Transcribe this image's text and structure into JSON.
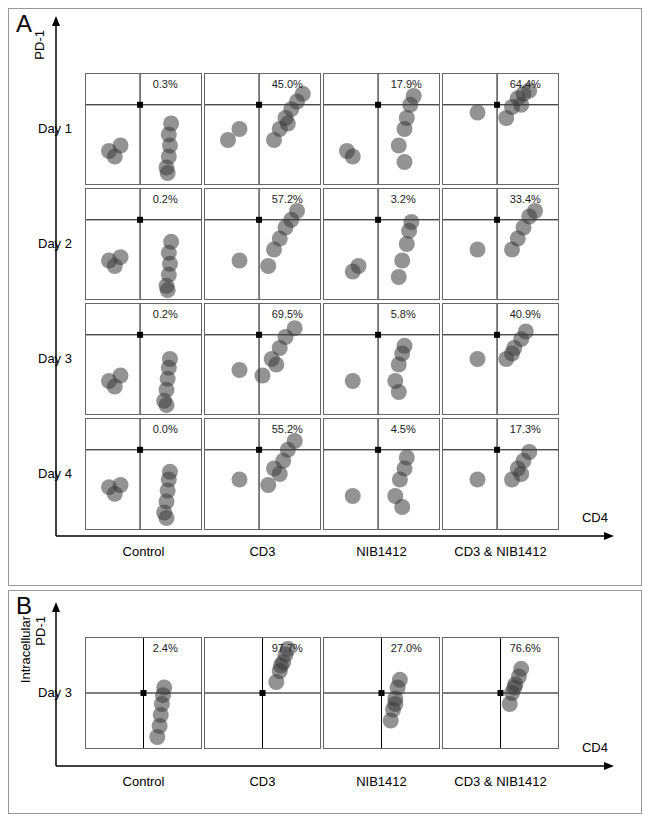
{
  "figure": {
    "panels": [
      {
        "label": "A",
        "y_axis": [
          "PD-1"
        ],
        "x_axis": "CD4",
        "rows": [
          "Day 1",
          "Day 2",
          "Day 3",
          "Day 4"
        ],
        "columns": [
          "Control",
          "CD3",
          "NIB1412",
          "CD3 & NIB1412"
        ]
      },
      {
        "label": "B",
        "y_axis": [
          "Intracellular",
          "PD-1"
        ],
        "x_axis": "CD4",
        "rows": [
          "Day 3"
        ],
        "columns": [
          "Control",
          "CD3",
          "NIB1412",
          "CD3 & NIB1412"
        ]
      }
    ]
  },
  "chart_data": [
    {
      "type": "scatter",
      "panel": "A",
      "row": "Day 1",
      "column": "Control",
      "annotations": [
        "0.3%"
      ],
      "xlim": [
        0,
        100
      ],
      "ylim": [
        0,
        100
      ],
      "tick_labels": false,
      "quadrant": {
        "x": 47,
        "y": 72
      },
      "x": [
        70,
        72,
        73,
        72,
        74,
        71,
        20,
        25,
        30
      ],
      "y": [
        15,
        25,
        35,
        45,
        55,
        10,
        30,
        25,
        35
      ]
    },
    {
      "type": "scatter",
      "panel": "A",
      "row": "Day 1",
      "column": "CD3",
      "annotations": [
        "45.0%"
      ],
      "xlim": [
        0,
        100
      ],
      "ylim": [
        0,
        100
      ],
      "tick_labels": false,
      "quadrant": {
        "x": 47,
        "y": 72
      },
      "x": [
        60,
        65,
        70,
        75,
        80,
        85,
        72,
        20,
        30
      ],
      "y": [
        40,
        50,
        60,
        68,
        75,
        82,
        55,
        40,
        50
      ]
    },
    {
      "type": "scatter",
      "panel": "A",
      "row": "Day 1",
      "column": "NIB1412",
      "annotations": [
        "17.9%"
      ],
      "xlim": [
        0,
        100
      ],
      "ylim": [
        0,
        100
      ],
      "tick_labels": false,
      "quadrant": {
        "x": 47,
        "y": 72
      },
      "x": [
        65,
        70,
        72,
        75,
        78,
        70,
        20,
        25
      ],
      "y": [
        35,
        50,
        60,
        72,
        80,
        20,
        30,
        25
      ]
    },
    {
      "type": "scatter",
      "panel": "A",
      "row": "Day 1",
      "column": "CD3 & NIB1412",
      "annotations": [
        "64.4%"
      ],
      "xlim": [
        0,
        100
      ],
      "ylim": [
        0,
        100
      ],
      "tick_labels": false,
      "quadrant": {
        "x": 47,
        "y": 72
      },
      "x": [
        60,
        65,
        70,
        75,
        68,
        55,
        30
      ],
      "y": [
        70,
        78,
        82,
        85,
        72,
        60,
        65
      ]
    },
    {
      "type": "scatter",
      "panel": "A",
      "row": "Day 2",
      "column": "Control",
      "annotations": [
        "0.2%"
      ],
      "xlim": [
        0,
        100
      ],
      "ylim": [
        0,
        100
      ],
      "tick_labels": false,
      "quadrant": {
        "x": 47,
        "y": 72
      },
      "x": [
        70,
        72,
        73,
        72,
        74,
        71,
        20,
        25,
        30
      ],
      "y": [
        12,
        22,
        32,
        42,
        52,
        8,
        35,
        30,
        38
      ]
    },
    {
      "type": "scatter",
      "panel": "A",
      "row": "Day 2",
      "column": "CD3",
      "annotations": [
        "57.2%"
      ],
      "xlim": [
        0,
        100
      ],
      "ylim": [
        0,
        100
      ],
      "tick_labels": false,
      "quadrant": {
        "x": 47,
        "y": 72
      },
      "x": [
        55,
        60,
        65,
        70,
        75,
        80,
        30
      ],
      "y": [
        30,
        45,
        55,
        65,
        72,
        80,
        35
      ]
    },
    {
      "type": "scatter",
      "panel": "A",
      "row": "Day 2",
      "column": "NIB1412",
      "annotations": [
        "3.2%"
      ],
      "xlim": [
        0,
        100
      ],
      "ylim": [
        0,
        100
      ],
      "tick_labels": false,
      "quadrant": {
        "x": 47,
        "y": 72
      },
      "x": [
        65,
        68,
        72,
        74,
        76,
        25,
        30
      ],
      "y": [
        20,
        35,
        50,
        62,
        70,
        25,
        30
      ]
    },
    {
      "type": "scatter",
      "panel": "A",
      "row": "Day 2",
      "column": "CD3 & NIB1412",
      "annotations": [
        "33.4%"
      ],
      "xlim": [
        0,
        100
      ],
      "ylim": [
        0,
        100
      ],
      "tick_labels": false,
      "quadrant": {
        "x": 47,
        "y": 72
      },
      "x": [
        60,
        65,
        70,
        75,
        80,
        30
      ],
      "y": [
        45,
        55,
        65,
        75,
        80,
        45
      ]
    },
    {
      "type": "scatter",
      "panel": "A",
      "row": "Day 3",
      "column": "Control",
      "annotations": [
        "0.2%"
      ],
      "xlim": [
        0,
        100
      ],
      "ylim": [
        0,
        100
      ],
      "tick_labels": false,
      "quadrant": {
        "x": 47,
        "y": 72
      },
      "x": [
        68,
        70,
        71,
        72,
        73,
        70,
        20,
        25,
        30
      ],
      "y": [
        12,
        22,
        32,
        42,
        50,
        8,
        30,
        25,
        35
      ]
    },
    {
      "type": "scatter",
      "panel": "A",
      "row": "Day 3",
      "column": "CD3",
      "annotations": [
        "69.5%"
      ],
      "xlim": [
        0,
        100
      ],
      "ylim": [
        0,
        100
      ],
      "tick_labels": false,
      "quadrant": {
        "x": 47,
        "y": 72
      },
      "x": [
        50,
        58,
        65,
        70,
        78,
        62,
        30
      ],
      "y": [
        35,
        50,
        60,
        70,
        78,
        45,
        40
      ]
    },
    {
      "type": "scatter",
      "panel": "A",
      "row": "Day 3",
      "column": "NIB1412",
      "annotations": [
        "5.8%"
      ],
      "xlim": [
        0,
        100
      ],
      "ylim": [
        0,
        100
      ],
      "tick_labels": false,
      "quadrant": {
        "x": 47,
        "y": 72
      },
      "x": [
        62,
        65,
        68,
        70,
        65,
        25
      ],
      "y": [
        30,
        45,
        55,
        62,
        20,
        30
      ]
    },
    {
      "type": "scatter",
      "panel": "A",
      "row": "Day 3",
      "column": "CD3 & NIB1412",
      "annotations": [
        "40.9%"
      ],
      "xlim": [
        0,
        100
      ],
      "ylim": [
        0,
        100
      ],
      "tick_labels": false,
      "quadrant": {
        "x": 47,
        "y": 72
      },
      "x": [
        55,
        62,
        68,
        72,
        60,
        30
      ],
      "y": [
        50,
        60,
        68,
        75,
        55,
        50
      ]
    },
    {
      "type": "scatter",
      "panel": "A",
      "row": "Day 4",
      "column": "Control",
      "annotations": [
        "0.0%"
      ],
      "xlim": [
        0,
        100
      ],
      "ylim": [
        0,
        100
      ],
      "tick_labels": false,
      "quadrant": {
        "x": 47,
        "y": 72
      },
      "x": [
        68,
        70,
        71,
        72,
        73,
        70,
        20,
        25,
        30
      ],
      "y": [
        15,
        25,
        35,
        45,
        52,
        10,
        38,
        32,
        40
      ]
    },
    {
      "type": "scatter",
      "panel": "A",
      "row": "Day 4",
      "column": "CD3",
      "annotations": [
        "55.2%"
      ],
      "xlim": [
        0,
        100
      ],
      "ylim": [
        0,
        100
      ],
      "tick_labels": false,
      "quadrant": {
        "x": 47,
        "y": 72
      },
      "x": [
        55,
        60,
        68,
        72,
        78,
        65,
        30
      ],
      "y": [
        40,
        55,
        62,
        72,
        80,
        50,
        45
      ]
    },
    {
      "type": "scatter",
      "panel": "A",
      "row": "Day 4",
      "column": "NIB1412",
      "annotations": [
        "4.5%"
      ],
      "xlim": [
        0,
        100
      ],
      "ylim": [
        0,
        100
      ],
      "tick_labels": false,
      "quadrant": {
        "x": 47,
        "y": 72
      },
      "x": [
        62,
        66,
        70,
        72,
        68,
        25
      ],
      "y": [
        30,
        45,
        55,
        65,
        20,
        30
      ]
    },
    {
      "type": "scatter",
      "panel": "A",
      "row": "Day 4",
      "column": "CD3 & NIB1412",
      "annotations": [
        "17.3%"
      ],
      "xlim": [
        0,
        100
      ],
      "ylim": [
        0,
        100
      ],
      "tick_labels": false,
      "quadrant": {
        "x": 47,
        "y": 72
      },
      "x": [
        60,
        65,
        70,
        75,
        68,
        30
      ],
      "y": [
        45,
        55,
        62,
        70,
        50,
        45
      ]
    },
    {
      "type": "scatter",
      "panel": "B",
      "row": "Day 3",
      "column": "Control",
      "annotations": [
        "2.4%"
      ],
      "xlim": [
        0,
        100
      ],
      "ylim": [
        0,
        100
      ],
      "tick_labels": false,
      "quadrant": {
        "x": 50,
        "y": 50
      },
      "x": [
        62,
        64,
        65,
        66,
        67,
        68
      ],
      "y": [
        10,
        20,
        30,
        40,
        48,
        55
      ]
    },
    {
      "type": "scatter",
      "panel": "B",
      "row": "Day 3",
      "column": "CD3",
      "annotations": [
        "97.7%"
      ],
      "xlim": [
        0,
        100
      ],
      "ylim": [
        0,
        100
      ],
      "tick_labels": false,
      "quadrant": {
        "x": 50,
        "y": 50
      },
      "x": [
        62,
        65,
        68,
        70,
        72,
        66
      ],
      "y": [
        60,
        70,
        78,
        85,
        90,
        75
      ]
    },
    {
      "type": "scatter",
      "panel": "B",
      "row": "Day 3",
      "column": "NIB1412",
      "annotations": [
        "27.0%"
      ],
      "xlim": [
        0,
        100
      ],
      "ylim": [
        0,
        100
      ],
      "tick_labels": false,
      "quadrant": {
        "x": 50,
        "y": 50
      },
      "x": [
        58,
        60,
        62,
        64,
        66,
        62
      ],
      "y": [
        25,
        35,
        45,
        55,
        62,
        40
      ]
    },
    {
      "type": "scatter",
      "panel": "B",
      "row": "Day 3",
      "column": "CD3 & NIB1412",
      "annotations": [
        "76.6%"
      ],
      "xlim": [
        0,
        100
      ],
      "ylim": [
        0,
        100
      ],
      "tick_labels": false,
      "quadrant": {
        "x": 50,
        "y": 50
      },
      "x": [
        58,
        60,
        63,
        66,
        68,
        62
      ],
      "y": [
        40,
        50,
        58,
        65,
        72,
        55
      ]
    }
  ]
}
